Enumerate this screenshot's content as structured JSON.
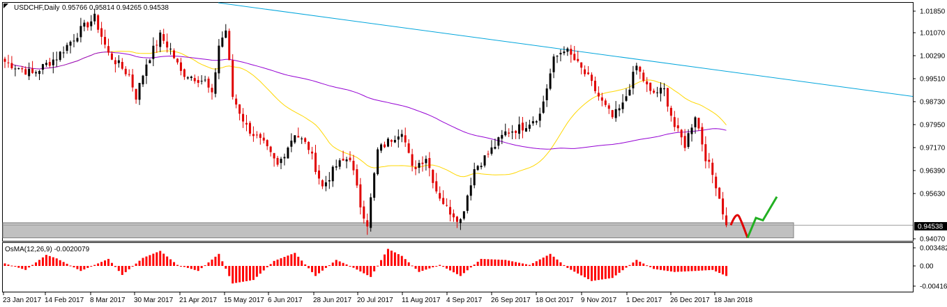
{
  "chart_data": {
    "type": "candlestick",
    "title": "USDCHF,Daily",
    "ohlc_label": "0.95766 0.95814 0.94265 0.94538",
    "current_price": "0.94538",
    "ylim": [
      0.9402,
      1.019
    ],
    "y_ticks": [
      "1.01850",
      "1.01070",
      "1.00290",
      "0.99510",
      "0.98730",
      "0.97950",
      "0.97170",
      "0.96390",
      "0.95630",
      "0.94538",
      "0.94070"
    ],
    "x_ticks": [
      "23 Jan 2017",
      "14 Feb 2017",
      "8 Mar 2017",
      "30 Mar 2017",
      "21 Apr 2017",
      "15 May 2017",
      "6 Jun 2017",
      "28 Jun 2017",
      "20 Jul 2017",
      "11 Aug 2017",
      "4 Sep 2017",
      "26 Sep 2017",
      "18 Oct 2017",
      "9 Nov 2017",
      "1 Dec 2017",
      "26 Dec 2017",
      "18 Jan 2018"
    ],
    "support_zone": [
      0.9412,
      0.9462
    ],
    "trendline": {
      "start": [
        "23 Jan 2017",
        1.019
      ],
      "end": [
        "beyond 18 Jan 2018",
        0.988
      ]
    },
    "forecast_red": [
      0.9454,
      0.9482,
      0.9412
    ],
    "forecast_green": [
      0.9412,
      0.9478,
      0.947,
      0.9548
    ],
    "series": [
      {
        "name": "",
        "color": "#ffd700"
      },
      {
        "name": "",
        "color": "#9400d3"
      }
    ],
    "osma": {
      "label": "OsMA(12,26,9) -0.0020079",
      "ylim": [
        -0.00416,
        0.00348
      ],
      "y_ticks": [
        "0.003482",
        "0.00",
        "-0.004161"
      ],
      "color": "#ff0000"
    }
  }
}
